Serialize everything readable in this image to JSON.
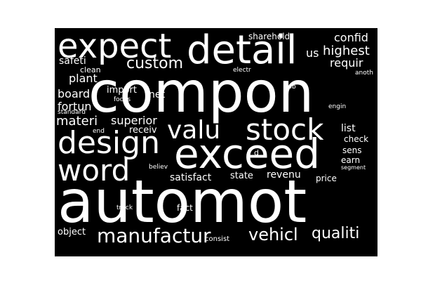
{
  "word_cloud": {
    "background_color": "#000000",
    "text_color": "#ffffff",
    "words": [
      {
        "text": "automot"
      },
      {
        "text": "compon"
      },
      {
        "text": "exceed"
      },
      {
        "text": "detail"
      },
      {
        "text": "expect"
      },
      {
        "text": "design"
      },
      {
        "text": "word"
      },
      {
        "text": "stock"
      },
      {
        "text": "valu"
      },
      {
        "text": "custom"
      },
      {
        "text": "manufactur"
      },
      {
        "text": "vehicl"
      },
      {
        "text": "qualiti"
      },
      {
        "text": "highest"
      },
      {
        "text": "confid"
      },
      {
        "text": "requir"
      },
      {
        "text": "sharehold"
      },
      {
        "text": "us"
      },
      {
        "text": "safeti"
      },
      {
        "text": "clean"
      },
      {
        "text": "electr"
      },
      {
        "text": "anoth"
      },
      {
        "text": "plant"
      },
      {
        "text": "board"
      },
      {
        "text": "import"
      },
      {
        "text": "net"
      },
      {
        "text": "focus"
      },
      {
        "text": "job"
      },
      {
        "text": "fortun"
      },
      {
        "text": "standard"
      },
      {
        "text": "engin"
      },
      {
        "text": "materi"
      },
      {
        "text": "superior"
      },
      {
        "text": "end"
      },
      {
        "text": "receiv"
      },
      {
        "text": "list"
      },
      {
        "text": "check"
      },
      {
        "text": "sens"
      },
      {
        "text": "d"
      },
      {
        "text": "earn"
      },
      {
        "text": "segment"
      },
      {
        "text": "believ"
      },
      {
        "text": "satisfact"
      },
      {
        "text": "state"
      },
      {
        "text": "revenu"
      },
      {
        "text": "price"
      },
      {
        "text": "truck"
      },
      {
        "text": "fact"
      },
      {
        "text": "object"
      },
      {
        "text": "consist"
      }
    ]
  }
}
